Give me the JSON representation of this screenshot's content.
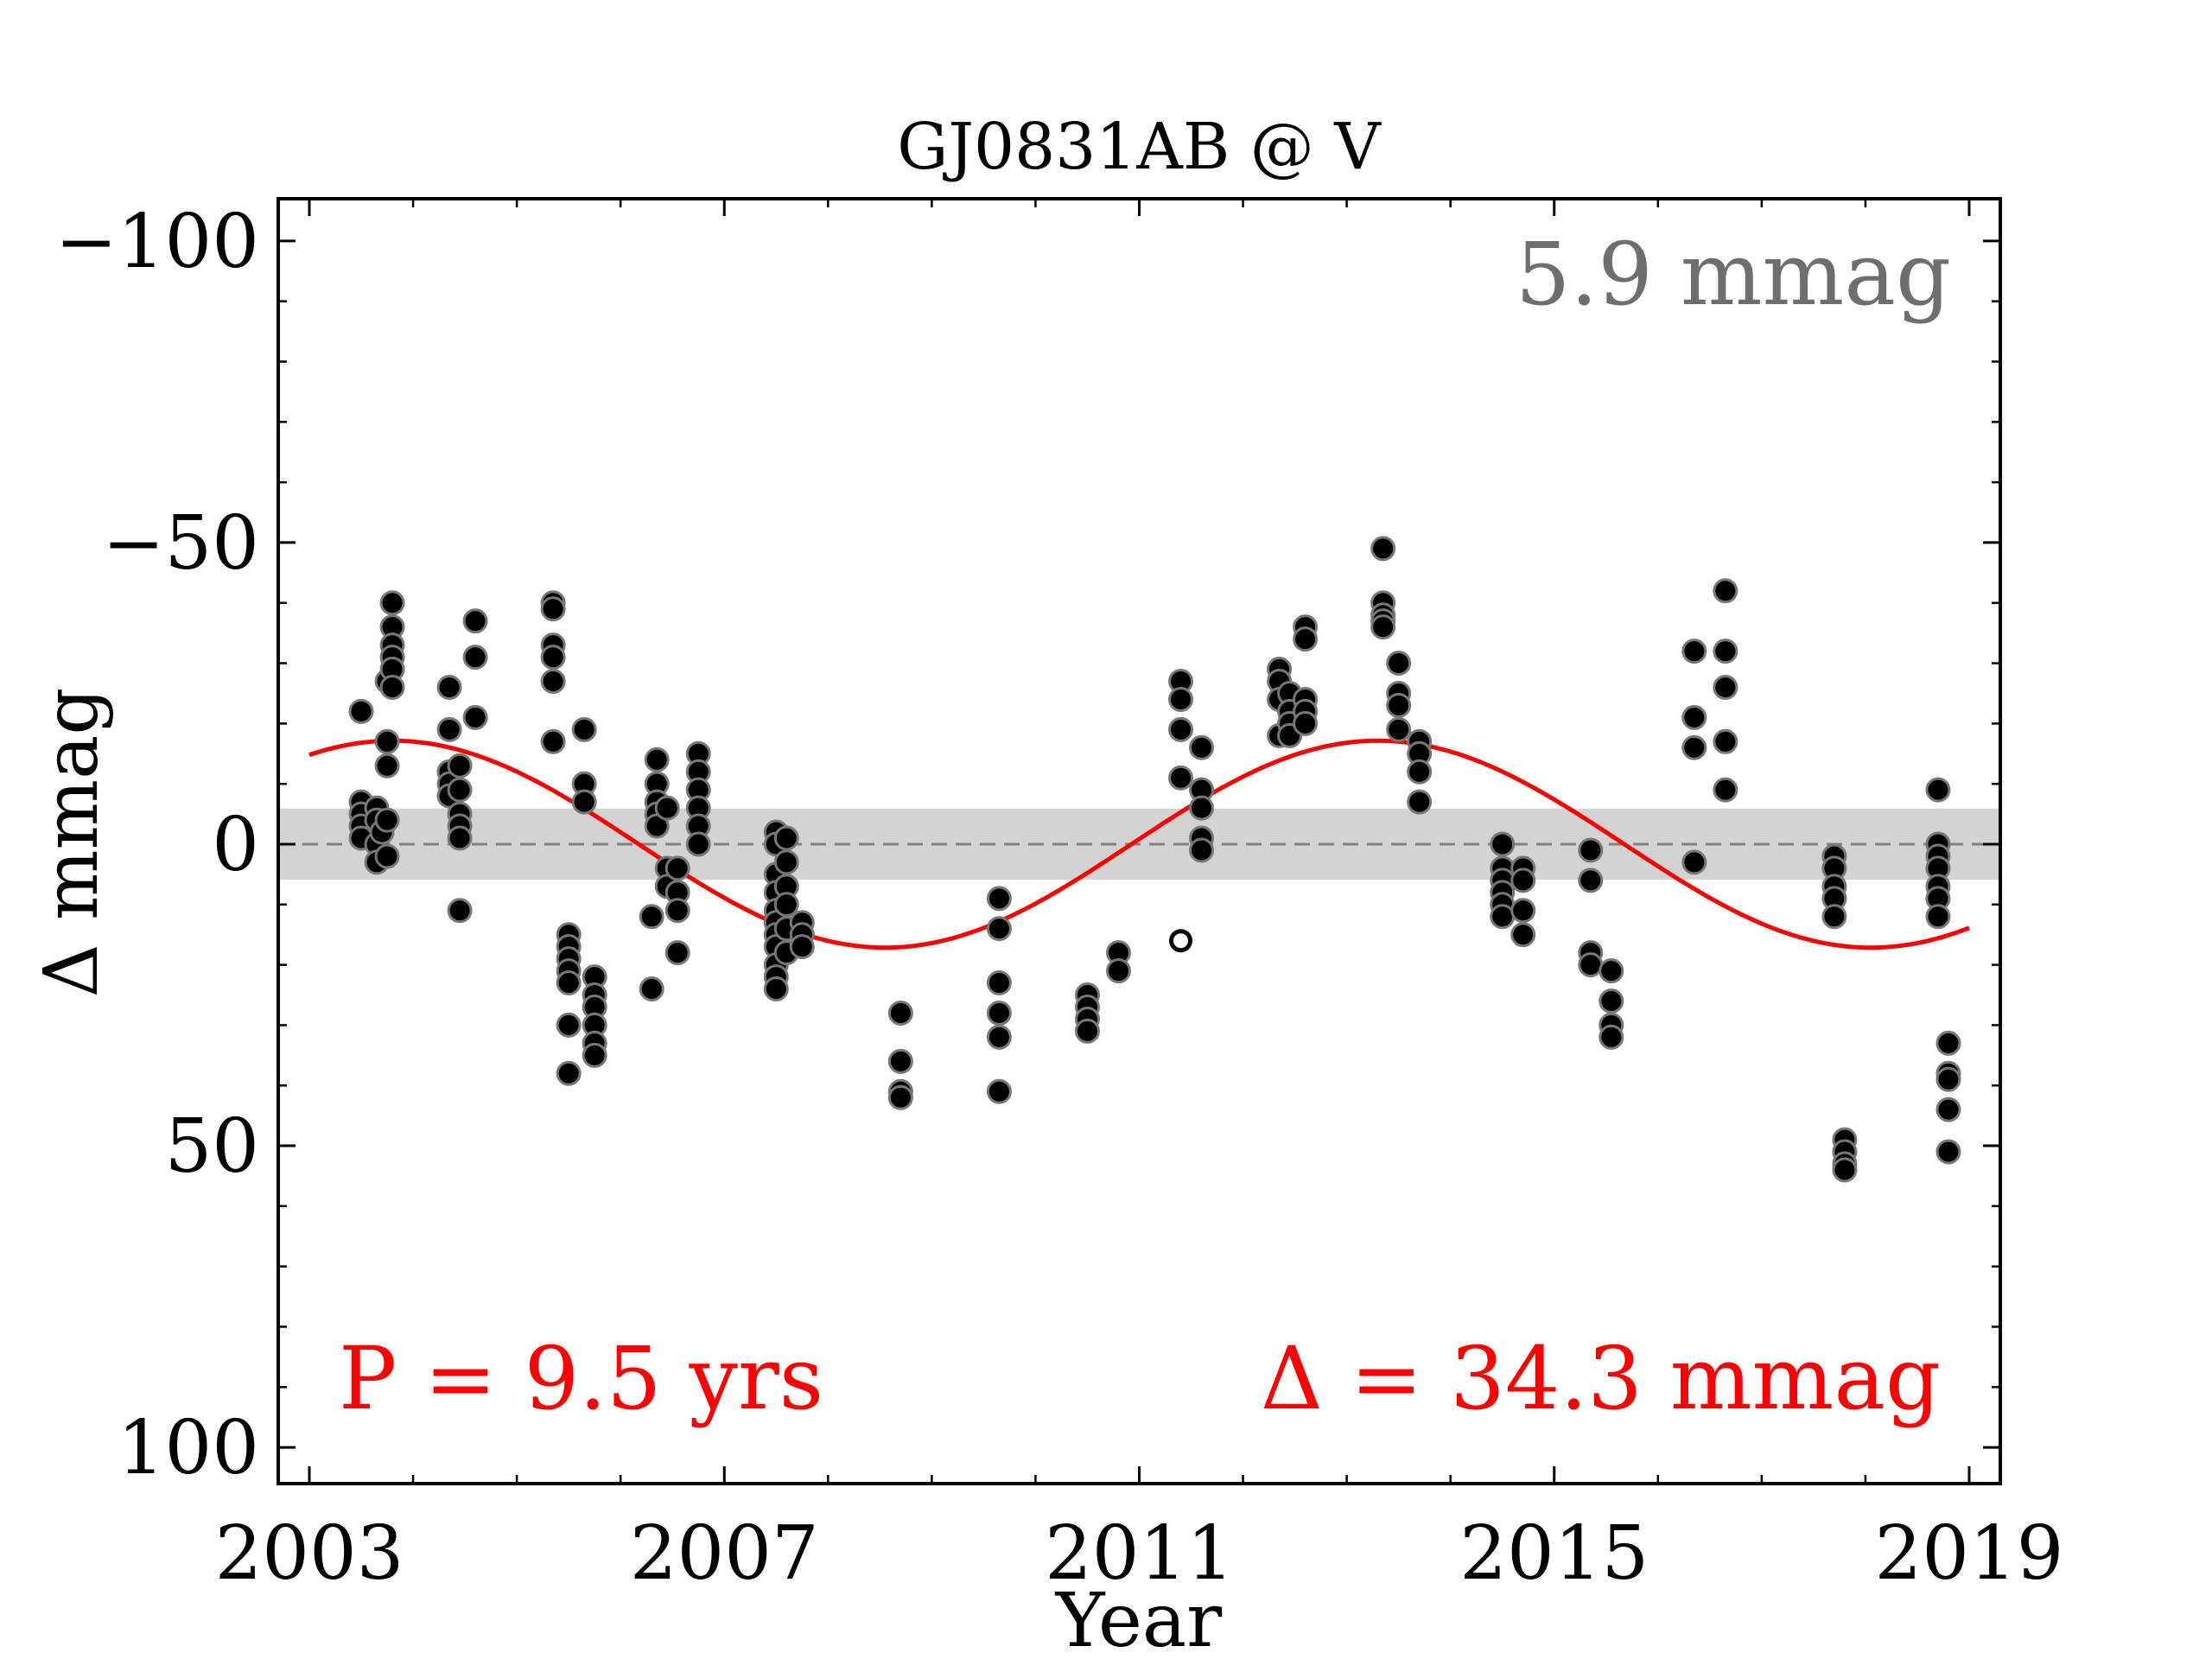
{
  "chart_data": {
    "type": "scatter",
    "title": "GJ0831AB @ V",
    "xlabel": "Year",
    "ylabel": "Δ  mmag",
    "xlim": [
      2002.7,
      2019.3
    ],
    "ylim": [
      106,
      -107
    ],
    "y_inverted": true,
    "xticks": [
      2003,
      2007,
      2011,
      2015,
      2019
    ],
    "xtick_labels": [
      "2003",
      "2007",
      "2011",
      "2015",
      "2019"
    ],
    "yticks": [
      -100,
      -50,
      0,
      50,
      100
    ],
    "ytick_labels": [
      "−100",
      "−50",
      "0",
      "50",
      "100"
    ],
    "rms_band": 5.9,
    "rms_label": "5.9 mmag",
    "fit_period_label": "P = 9.5 yrs",
    "fit_amplitude_label": "Δ = 34.3 mmag",
    "colors": {
      "points": "#000000",
      "point_edge": "#777777",
      "fit": "#ff0000",
      "band": "#d3d3d3",
      "rms_text": "#6e6e6e",
      "fit_text": "#ff0000"
    },
    "fit": {
      "period_years": 9.5,
      "amplitude_mmag": 17.15,
      "phase_peak_year": 2003.8,
      "x_start": 2003.0,
      "x_end": 2019.0
    },
    "series": [
      {
        "marker": "filled",
        "points": [
          [
            2003.5,
            -22
          ],
          [
            2003.5,
            -7
          ],
          [
            2003.5,
            -5
          ],
          [
            2003.5,
            -3
          ],
          [
            2003.5,
            -1
          ],
          [
            2003.65,
            -6
          ],
          [
            2003.65,
            -4
          ],
          [
            2003.65,
            0
          ],
          [
            2003.65,
            3
          ],
          [
            2003.7,
            -2
          ],
          [
            2003.75,
            -27
          ],
          [
            2003.75,
            -17
          ],
          [
            2003.75,
            -13
          ],
          [
            2003.75,
            -4
          ],
          [
            2003.75,
            2
          ],
          [
            2003.8,
            -40
          ],
          [
            2003.8,
            -36
          ],
          [
            2003.8,
            -33
          ],
          [
            2003.8,
            -31
          ],
          [
            2003.8,
            -29
          ],
          [
            2003.8,
            -26
          ],
          [
            2004.35,
            -26
          ],
          [
            2004.35,
            -19
          ],
          [
            2004.35,
            -12
          ],
          [
            2004.35,
            -10
          ],
          [
            2004.35,
            -8
          ],
          [
            2004.45,
            -13
          ],
          [
            2004.45,
            -9
          ],
          [
            2004.45,
            -5
          ],
          [
            2004.45,
            -3
          ],
          [
            2004.45,
            -1
          ],
          [
            2004.45,
            11
          ],
          [
            2004.6,
            -37
          ],
          [
            2004.6,
            -31
          ],
          [
            2004.6,
            -21
          ],
          [
            2005.35,
            -40
          ],
          [
            2005.35,
            -39
          ],
          [
            2005.35,
            -33
          ],
          [
            2005.35,
            -31
          ],
          [
            2005.35,
            -27
          ],
          [
            2005.35,
            -17
          ],
          [
            2005.5,
            15
          ],
          [
            2005.5,
            17
          ],
          [
            2005.5,
            19
          ],
          [
            2005.5,
            21
          ],
          [
            2005.5,
            23
          ],
          [
            2005.5,
            30
          ],
          [
            2005.5,
            38
          ],
          [
            2005.65,
            -19
          ],
          [
            2005.65,
            -10
          ],
          [
            2005.65,
            -7
          ],
          [
            2005.75,
            22
          ],
          [
            2005.75,
            25
          ],
          [
            2005.75,
            27
          ],
          [
            2005.75,
            30
          ],
          [
            2005.75,
            33
          ],
          [
            2005.75,
            35
          ],
          [
            2006.3,
            12
          ],
          [
            2006.3,
            24
          ],
          [
            2006.35,
            -14
          ],
          [
            2006.35,
            -10
          ],
          [
            2006.35,
            -7
          ],
          [
            2006.35,
            -5
          ],
          [
            2006.35,
            -3
          ],
          [
            2006.45,
            4
          ],
          [
            2006.45,
            7
          ],
          [
            2006.45,
            -6
          ],
          [
            2006.55,
            4
          ],
          [
            2006.55,
            8
          ],
          [
            2006.55,
            11
          ],
          [
            2006.55,
            18
          ],
          [
            2006.75,
            -15
          ],
          [
            2006.75,
            -12
          ],
          [
            2006.75,
            -9
          ],
          [
            2006.75,
            -6
          ],
          [
            2006.75,
            -3
          ],
          [
            2006.75,
            0
          ],
          [
            2007.5,
            -2
          ],
          [
            2007.5,
            0
          ],
          [
            2007.5,
            5
          ],
          [
            2007.5,
            8
          ],
          [
            2007.5,
            11
          ],
          [
            2007.5,
            13
          ],
          [
            2007.5,
            15
          ],
          [
            2007.5,
            17
          ],
          [
            2007.5,
            20
          ],
          [
            2007.5,
            22
          ],
          [
            2007.5,
            24
          ],
          [
            2007.6,
            -1
          ],
          [
            2007.6,
            3
          ],
          [
            2007.6,
            7
          ],
          [
            2007.6,
            10
          ],
          [
            2007.6,
            14
          ],
          [
            2007.6,
            18
          ],
          [
            2007.75,
            13
          ],
          [
            2007.75,
            15
          ],
          [
            2007.75,
            17
          ],
          [
            2008.7,
            28
          ],
          [
            2008.7,
            36
          ],
          [
            2008.7,
            41
          ],
          [
            2008.7,
            42
          ],
          [
            2009.65,
            9
          ],
          [
            2009.65,
            14
          ],
          [
            2009.65,
            23
          ],
          [
            2009.65,
            28
          ],
          [
            2009.65,
            32
          ],
          [
            2009.65,
            41
          ],
          [
            2010.5,
            25
          ],
          [
            2010.5,
            27
          ],
          [
            2010.5,
            29
          ],
          [
            2010.5,
            31
          ],
          [
            2010.8,
            18
          ],
          [
            2010.8,
            21
          ],
          [
            2011.4,
            -27
          ],
          [
            2011.4,
            -24
          ],
          [
            2011.4,
            -19
          ],
          [
            2011.4,
            -11
          ],
          [
            2011.6,
            -16
          ],
          [
            2011.6,
            -9
          ],
          [
            2011.6,
            -6
          ],
          [
            2011.6,
            -1
          ],
          [
            2011.6,
            1
          ],
          [
            2012.35,
            -29
          ],
          [
            2012.35,
            -27
          ],
          [
            2012.35,
            -24
          ],
          [
            2012.35,
            -18
          ],
          [
            2012.45,
            -25
          ],
          [
            2012.45,
            -22
          ],
          [
            2012.45,
            -20
          ],
          [
            2012.45,
            -18
          ],
          [
            2012.6,
            -36
          ],
          [
            2012.6,
            -34
          ],
          [
            2012.6,
            -24
          ],
          [
            2012.6,
            -22
          ],
          [
            2012.6,
            -20
          ],
          [
            2013.35,
            -49
          ],
          [
            2013.35,
            -40
          ],
          [
            2013.35,
            -38
          ],
          [
            2013.35,
            -37
          ],
          [
            2013.35,
            -36
          ],
          [
            2013.5,
            -30
          ],
          [
            2013.5,
            -25
          ],
          [
            2013.5,
            -23
          ],
          [
            2013.5,
            -19
          ],
          [
            2013.7,
            -17
          ],
          [
            2013.7,
            -15
          ],
          [
            2013.7,
            -12
          ],
          [
            2013.7,
            -7
          ],
          [
            2014.5,
            0
          ],
          [
            2014.5,
            4
          ],
          [
            2014.5,
            6
          ],
          [
            2014.5,
            8
          ],
          [
            2014.5,
            10
          ],
          [
            2014.5,
            12
          ],
          [
            2014.7,
            4
          ],
          [
            2014.7,
            6
          ],
          [
            2014.7,
            11
          ],
          [
            2014.7,
            15
          ],
          [
            2015.35,
            1
          ],
          [
            2015.35,
            6
          ],
          [
            2015.35,
            18
          ],
          [
            2015.35,
            20
          ],
          [
            2015.55,
            21
          ],
          [
            2015.55,
            26
          ],
          [
            2015.55,
            30
          ],
          [
            2015.55,
            32
          ],
          [
            2016.35,
            -32
          ],
          [
            2016.35,
            -21
          ],
          [
            2016.35,
            -16
          ],
          [
            2016.35,
            3
          ],
          [
            2016.65,
            -42
          ],
          [
            2016.65,
            -32
          ],
          [
            2016.65,
            -26
          ],
          [
            2016.65,
            -17
          ],
          [
            2016.65,
            -9
          ],
          [
            2017.7,
            2
          ],
          [
            2017.7,
            4
          ],
          [
            2017.7,
            7
          ],
          [
            2017.7,
            9
          ],
          [
            2017.7,
            12
          ],
          [
            2017.8,
            49
          ],
          [
            2017.8,
            51
          ],
          [
            2017.8,
            53
          ],
          [
            2017.8,
            54
          ],
          [
            2018.7,
            -9
          ],
          [
            2018.7,
            0
          ],
          [
            2018.7,
            2
          ],
          [
            2018.7,
            4
          ],
          [
            2018.7,
            7
          ],
          [
            2018.7,
            9
          ],
          [
            2018.7,
            12
          ],
          [
            2018.8,
            33
          ],
          [
            2018.8,
            38
          ],
          [
            2018.8,
            39
          ],
          [
            2018.8,
            44
          ],
          [
            2018.8,
            51
          ]
        ]
      },
      {
        "marker": "open",
        "points": [
          [
            2011.4,
            16
          ]
        ]
      }
    ]
  }
}
